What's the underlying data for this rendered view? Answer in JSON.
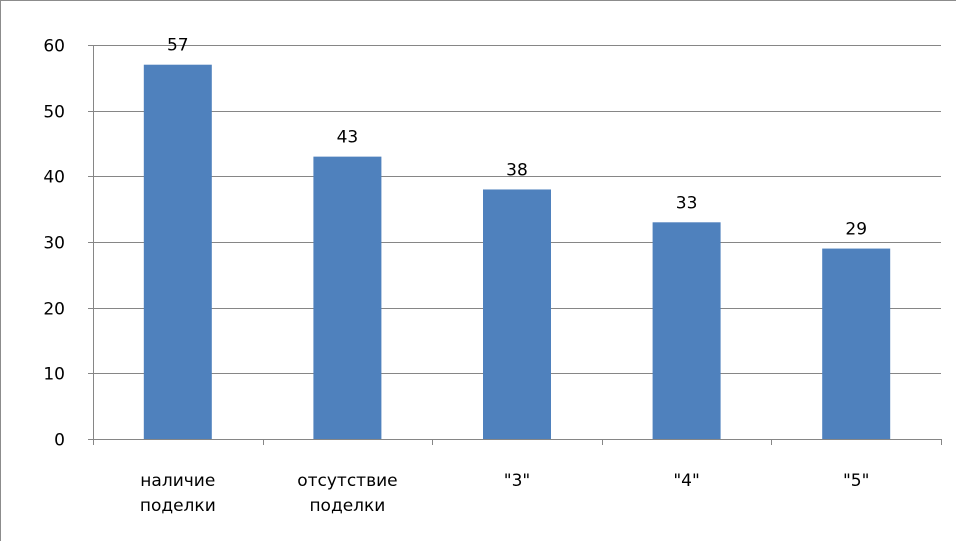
{
  "chart_data": {
    "type": "bar",
    "categories": [
      [
        "наличие",
        "поделки"
      ],
      [
        "отсутствие",
        "поделки"
      ],
      [
        "\"3\""
      ],
      [
        "\"4\""
      ],
      [
        "\"5\""
      ]
    ],
    "values": [
      57,
      43,
      38,
      33,
      29
    ],
    "data_labels": [
      "57",
      "43",
      "38",
      "33",
      "29"
    ],
    "ylim": [
      0,
      60
    ],
    "yticks": [
      0,
      10,
      20,
      30,
      40,
      50,
      60
    ],
    "ytick_labels": [
      "0",
      "10",
      "20",
      "30",
      "40",
      "50",
      "60"
    ],
    "grid": true,
    "legend": "none",
    "bar_color": "#4f81bd",
    "grid_color": "#868686"
  }
}
